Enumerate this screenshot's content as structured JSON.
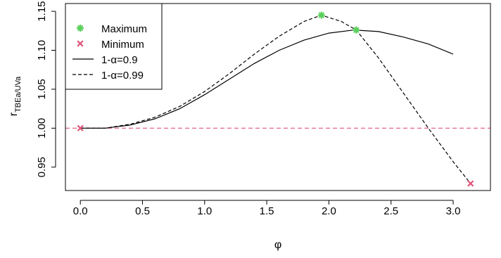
{
  "chart_data": {
    "type": "line",
    "xlabel": "φ",
    "ylabel": "r",
    "ylabel_subscript": "TBEa/UVa",
    "xlim": [
      -0.12,
      3.3
    ],
    "ylim": [
      0.92,
      1.16
    ],
    "x_ticks": [
      0.0,
      0.5,
      1.0,
      1.5,
      2.0,
      2.5,
      3.0
    ],
    "x_tick_labels": [
      "0.0",
      "0.5",
      "1.0",
      "1.5",
      "2.0",
      "2.5",
      "3.0"
    ],
    "y_ticks": [
      0.95,
      1.0,
      1.05,
      1.1,
      1.15
    ],
    "y_tick_labels": [
      "0.95",
      "1.00",
      "1.05",
      "1.10",
      "1.15"
    ],
    "reference_line": {
      "y": 1.0,
      "color": "#e0557a",
      "style": "dashed"
    },
    "series": [
      {
        "name": "1-α=0.9",
        "style": "solid",
        "color": "#000000",
        "x": [
          0.0,
          0.2,
          0.4,
          0.6,
          0.8,
          1.0,
          1.2,
          1.4,
          1.6,
          1.8,
          2.0,
          2.2,
          2.4,
          2.6,
          2.8,
          3.0
        ],
        "y": [
          1.0,
          1.0,
          1.004,
          1.012,
          1.025,
          1.043,
          1.063,
          1.083,
          1.1,
          1.113,
          1.122,
          1.126,
          1.124,
          1.117,
          1.108,
          1.095
        ]
      },
      {
        "name": "1-α=0.99",
        "style": "dashed",
        "color": "#000000",
        "x": [
          0.0,
          0.2,
          0.4,
          0.6,
          0.8,
          1.0,
          1.2,
          1.4,
          1.6,
          1.8,
          1.94,
          2.1,
          2.22,
          2.4,
          2.6,
          2.8,
          3.0,
          3.14
        ],
        "y": [
          1.0,
          1.0,
          1.005,
          1.014,
          1.028,
          1.047,
          1.07,
          1.095,
          1.118,
          1.137,
          1.145,
          1.137,
          1.126,
          1.09,
          1.045,
          1.0,
          0.957,
          0.929
        ]
      }
    ],
    "points": [
      {
        "series": "Maximum",
        "marker": "asterisk",
        "color": "#5ccf5c",
        "x": [
          1.94,
          2.22
        ],
        "y": [
          1.145,
          1.126
        ]
      },
      {
        "series": "Minimum",
        "marker": "cross",
        "color": "#e0557a",
        "x": [
          0.0,
          3.14
        ],
        "y": [
          1.0,
          0.929
        ]
      }
    ],
    "legend": {
      "position": "top-left",
      "entries": [
        {
          "label": "Maximum",
          "marker": "asterisk",
          "color": "#5ccf5c"
        },
        {
          "label": "Minimum",
          "marker": "cross",
          "color": "#e0557a"
        },
        {
          "label": "1-α=0.9",
          "line": "solid",
          "color": "#000000"
        },
        {
          "label": "1-α=0.99",
          "line": "dashed",
          "color": "#000000"
        }
      ]
    }
  }
}
